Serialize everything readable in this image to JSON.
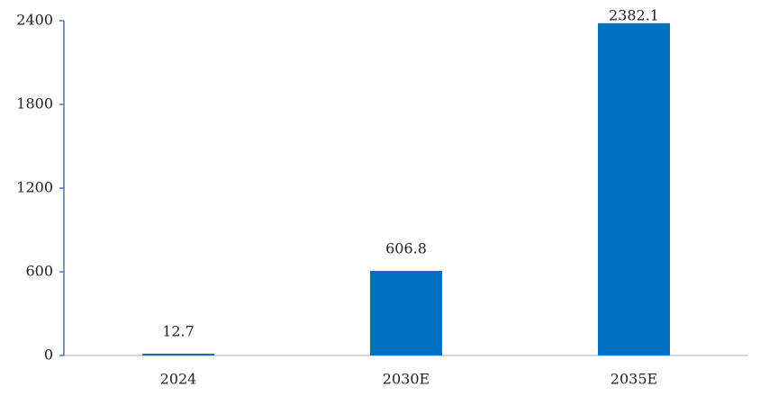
{
  "chart_data": {
    "type": "bar",
    "categories": [
      "2024",
      "2030E",
      "2035E"
    ],
    "values": [
      12.7,
      606.8,
      2382.1
    ],
    "color": "#0070c0",
    "ylim": [
      0,
      2400
    ],
    "yticks": [
      0,
      600,
      1200,
      1800,
      2400
    ]
  }
}
